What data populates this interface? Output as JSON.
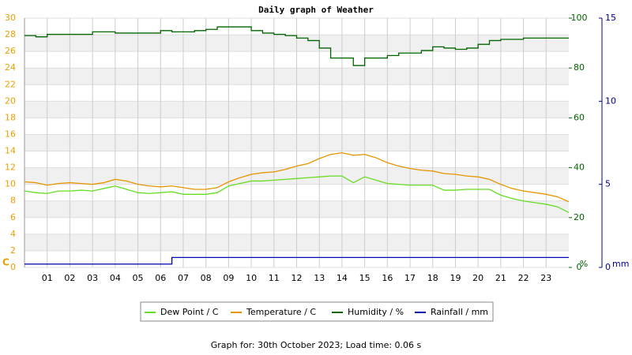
{
  "chart_data": {
    "type": "line",
    "title": "Daily graph of Weather",
    "x": [
      0,
      0.5,
      1,
      1.5,
      2,
      2.5,
      3,
      3.5,
      4,
      4.5,
      5,
      5.5,
      6,
      6.5,
      7,
      7.5,
      8,
      8.5,
      9,
      9.5,
      10,
      10.5,
      11,
      11.5,
      12,
      12.5,
      13,
      13.5,
      14,
      14.5,
      15,
      15.5,
      16,
      16.5,
      17,
      17.5,
      18,
      18.5,
      19,
      19.5,
      20,
      20.5,
      21,
      21.5,
      22,
      22.5,
      23,
      23.5,
      24
    ],
    "xlim": [
      0,
      24
    ],
    "xticks": [
      {
        "value": 1,
        "label": "01"
      },
      {
        "value": 2,
        "label": "02"
      },
      {
        "value": 3,
        "label": "03"
      },
      {
        "value": 4,
        "label": "04"
      },
      {
        "value": 5,
        "label": "05"
      },
      {
        "value": 6,
        "label": "06"
      },
      {
        "value": 7,
        "label": "07"
      },
      {
        "value": 8,
        "label": "08"
      },
      {
        "value": 9,
        "label": "09"
      },
      10,
      11,
      12,
      13,
      14,
      15,
      16,
      17,
      18,
      19,
      20,
      21,
      22,
      23
    ],
    "ylabel": "C",
    "ylim": [
      0,
      30
    ],
    "yticks": [
      0,
      2,
      4,
      6,
      8,
      10,
      12,
      14,
      16,
      18,
      20,
      22,
      24,
      26,
      28,
      30
    ],
    "ycolor": "#e8a000",
    "y2label": "%",
    "y2lim": [
      0,
      100
    ],
    "y2ticks": [
      0,
      20,
      40,
      60,
      80,
      100
    ],
    "y2color": "#006400",
    "y3label": "mm",
    "y3lim": [
      0,
      15
    ],
    "y3ticks": [
      0,
      5,
      10,
      15
    ],
    "y3color": "#00008b",
    "grid": true,
    "series": [
      {
        "name": "Dew Point / C",
        "color": "#66dd22",
        "axis": "y",
        "step": false,
        "values": [
          9.2,
          9.0,
          8.9,
          9.2,
          9.2,
          9.3,
          9.2,
          9.5,
          9.8,
          9.4,
          9.0,
          8.9,
          9.0,
          9.1,
          8.8,
          8.8,
          8.8,
          9.0,
          9.8,
          10.1,
          10.4,
          10.4,
          10.5,
          10.6,
          10.7,
          10.8,
          10.9,
          11.0,
          11.0,
          10.2,
          10.9,
          10.5,
          10.1,
          10.0,
          9.9,
          9.9,
          9.9,
          9.3,
          9.3,
          9.4,
          9.4,
          9.4,
          8.7,
          8.3,
          8.0,
          7.8,
          7.6,
          7.3,
          6.6
        ]
      },
      {
        "name": "Temperature / C",
        "color": "#e69500",
        "axis": "y",
        "step": false,
        "values": [
          10.3,
          10.2,
          9.9,
          10.1,
          10.2,
          10.1,
          10.0,
          10.2,
          10.6,
          10.4,
          10.0,
          9.8,
          9.7,
          9.8,
          9.6,
          9.4,
          9.4,
          9.6,
          10.3,
          10.8,
          11.2,
          11.4,
          11.5,
          11.8,
          12.2,
          12.5,
          13.1,
          13.6,
          13.8,
          13.5,
          13.6,
          13.2,
          12.6,
          12.2,
          11.9,
          11.7,
          11.6,
          11.3,
          11.2,
          11.0,
          10.9,
          10.6,
          10.0,
          9.5,
          9.2,
          9.0,
          8.8,
          8.5,
          7.9
        ]
      },
      {
        "name": "Humidity / %",
        "color": "#006400",
        "axis": "y2",
        "step": true,
        "values": [
          93,
          92.5,
          93.5,
          93.5,
          93.5,
          93.5,
          94.5,
          94.5,
          94,
          94,
          94,
          94,
          95,
          94.5,
          94.5,
          95,
          95.5,
          96.5,
          96.5,
          96.5,
          95,
          94,
          93.5,
          93,
          92,
          91,
          88,
          84,
          84,
          81,
          84,
          84,
          85,
          86,
          86,
          87,
          88.5,
          88,
          87.5,
          88,
          89.5,
          91,
          91.5,
          91.5,
          92,
          92,
          92,
          92,
          92
        ]
      },
      {
        "name": "Rainfall / mm",
        "color": "#0000aa",
        "axis": "y3",
        "step": true,
        "values": [
          0.2,
          0.2,
          0.2,
          0.2,
          0.2,
          0.2,
          0.2,
          0.2,
          0.2,
          0.2,
          0.2,
          0.2,
          0.2,
          0.6,
          0.6,
          0.6,
          0.6,
          0.6,
          0.6,
          0.6,
          0.6,
          0.6,
          0.6,
          0.6,
          0.6,
          0.6,
          0.6,
          0.6,
          0.6,
          0.6,
          0.6,
          0.6,
          0.6,
          0.6,
          0.6,
          0.6,
          0.6,
          0.6,
          0.6,
          0.6,
          0.6,
          0.6,
          0.6,
          0.6,
          0.6,
          0.6,
          0.6,
          0.6,
          0.6
        ]
      }
    ],
    "footer": "Graph for: 30th October 2023; Load time: 0.06 s"
  }
}
